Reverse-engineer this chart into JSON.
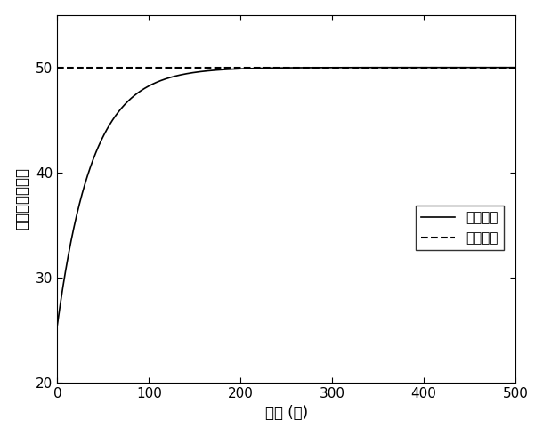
{
  "title": "",
  "xlabel": "时间 (秒)",
  "ylabel": "温度（摄氏度）",
  "xlim": [
    0,
    500
  ],
  "ylim": [
    20,
    55
  ],
  "yticks": [
    20,
    30,
    40,
    50
  ],
  "xticks": [
    0,
    100,
    200,
    300,
    400,
    500
  ],
  "ref_temp": 50,
  "init_temp": 25.5,
  "time_constant": 38,
  "line_color": "#000000",
  "legend_actual": "实际温度",
  "legend_ref": "参考温度",
  "figsize": [
    6.1,
    4.9
  ],
  "dpi": 100
}
